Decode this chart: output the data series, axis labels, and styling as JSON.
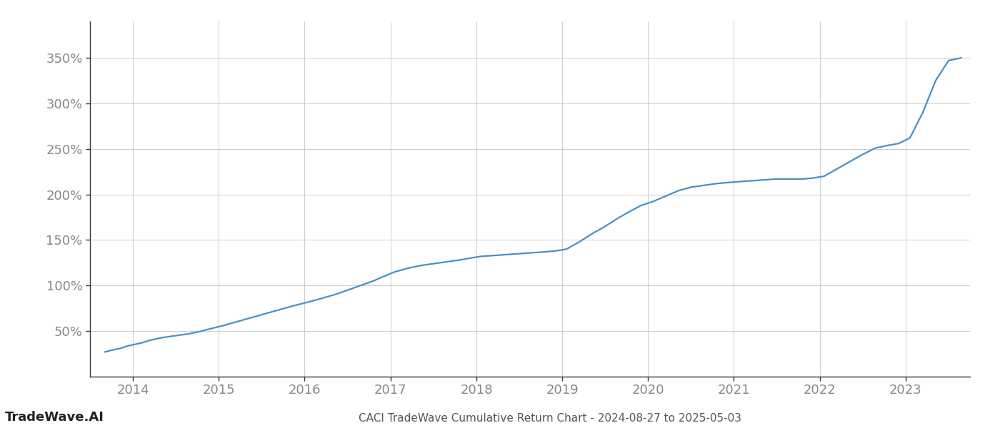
{
  "title": "CACI TradeWave Cumulative Return Chart - 2024-08-27 to 2025-05-03",
  "watermark": "TradeWave.AI",
  "line_color": "#4a90c4",
  "background_color": "#ffffff",
  "grid_color": "#cccccc",
  "x_years": [
    2014,
    2015,
    2016,
    2017,
    2018,
    2019,
    2020,
    2021,
    2022,
    2023
  ],
  "x_data": [
    2013.67,
    2013.75,
    2013.85,
    2013.95,
    2014.1,
    2014.2,
    2014.35,
    2014.5,
    2014.65,
    2014.8,
    2014.92,
    2015.05,
    2015.2,
    2015.35,
    2015.5,
    2015.65,
    2015.8,
    2015.92,
    2016.05,
    2016.2,
    2016.35,
    2016.5,
    2016.65,
    2016.8,
    2016.92,
    2017.05,
    2017.2,
    2017.35,
    2017.5,
    2017.65,
    2017.8,
    2017.92,
    2018.05,
    2018.2,
    2018.35,
    2018.5,
    2018.65,
    2018.8,
    2018.92,
    2019.05,
    2019.2,
    2019.35,
    2019.5,
    2019.65,
    2019.8,
    2019.92,
    2020.05,
    2020.2,
    2020.35,
    2020.5,
    2020.65,
    2020.8,
    2020.92,
    2021.05,
    2021.2,
    2021.35,
    2021.5,
    2021.65,
    2021.8,
    2021.92,
    2022.05,
    2022.2,
    2022.35,
    2022.5,
    2022.65,
    2022.8,
    2022.92,
    2023.05,
    2023.2,
    2023.35,
    2023.5,
    2023.65
  ],
  "y_data": [
    27,
    29,
    31,
    34,
    37,
    40,
    43,
    45,
    47,
    50,
    53,
    56,
    60,
    64,
    68,
    72,
    76,
    79,
    82,
    86,
    90,
    95,
    100,
    105,
    110,
    115,
    119,
    122,
    124,
    126,
    128,
    130,
    132,
    133,
    134,
    135,
    136,
    137,
    138,
    140,
    148,
    157,
    165,
    174,
    182,
    188,
    192,
    198,
    204,
    208,
    210,
    212,
    213,
    214,
    215,
    216,
    217,
    217,
    217,
    218,
    220,
    228,
    236,
    244,
    251,
    254,
    256,
    262,
    290,
    325,
    347,
    350
  ],
  "ylim_bottom": 0,
  "ylim_top": 390,
  "xlim": [
    2013.5,
    2023.75
  ],
  "yticks": [
    50,
    100,
    150,
    200,
    250,
    300,
    350
  ],
  "ytick_labels": [
    "50%",
    "100%",
    "150%",
    "200%",
    "250%",
    "300%",
    "350%"
  ],
  "line_width": 1.6,
  "title_fontsize": 11,
  "tick_fontsize": 13,
  "watermark_fontsize": 13,
  "tick_color": "#888888",
  "spine_color": "#333333"
}
